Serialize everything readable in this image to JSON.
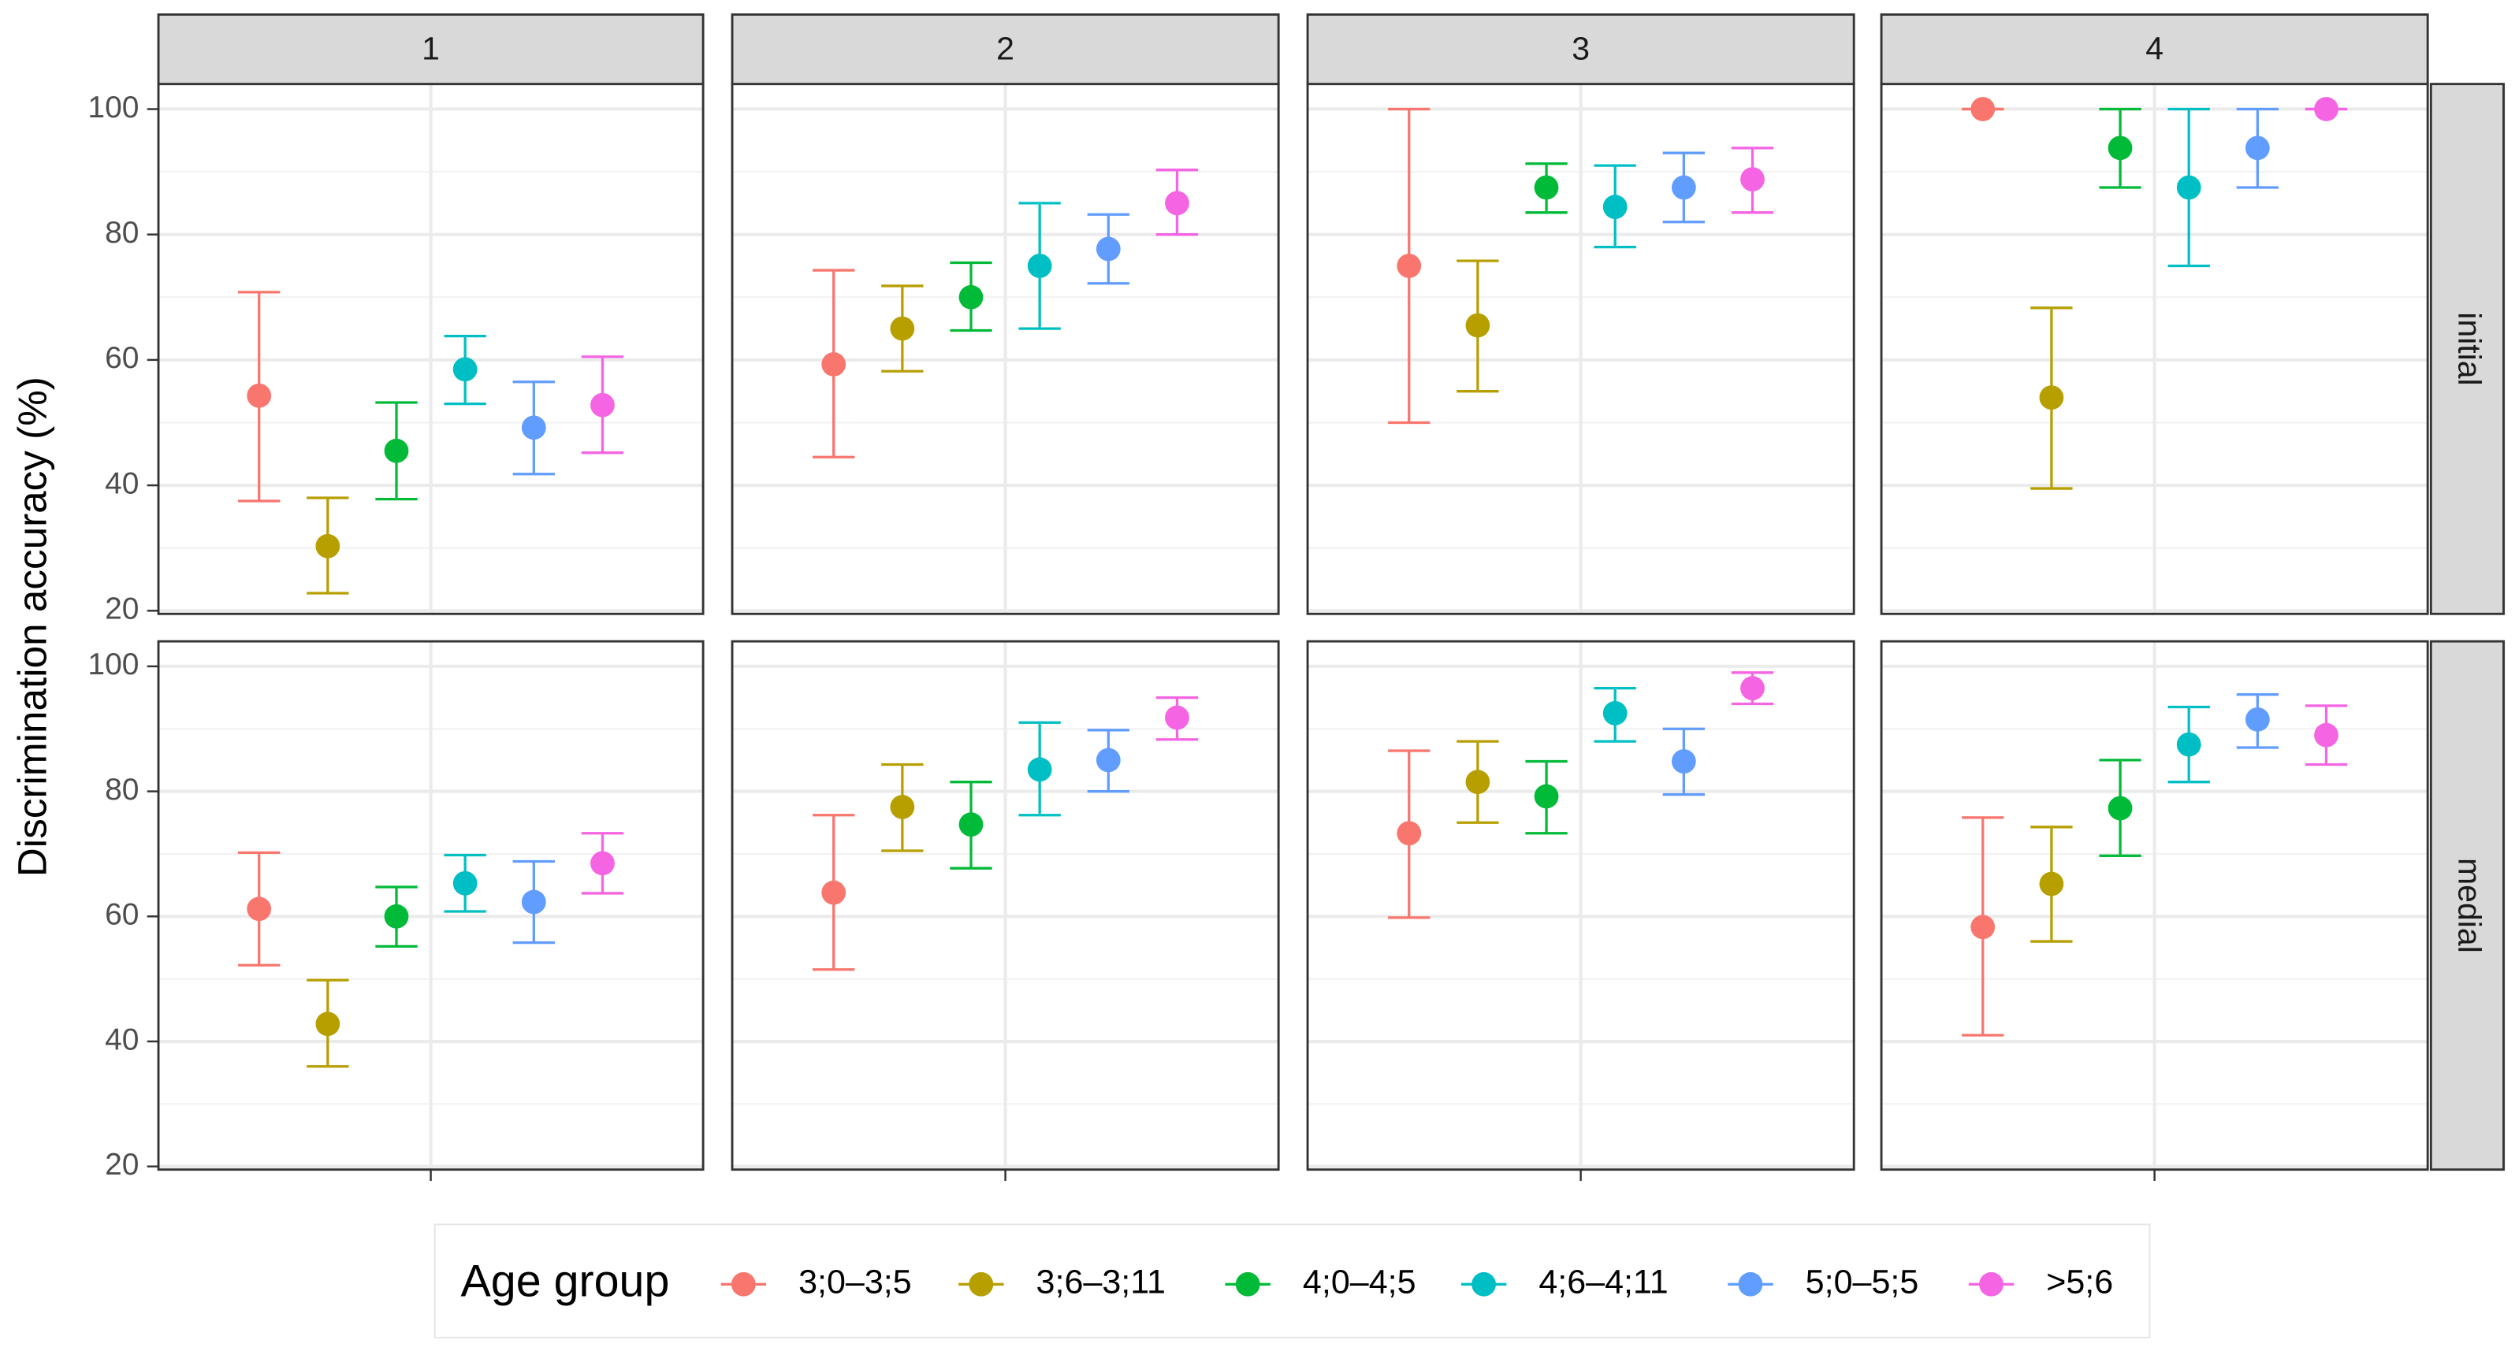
{
  "chart_data": {
    "type": "errorbar",
    "y_label": "Discrimination accuracy (%)",
    "columns": [
      "1",
      "2",
      "3",
      "4"
    ],
    "rows": [
      "initial",
      "medial"
    ],
    "ylim": [
      19.5,
      104
    ],
    "yticks": [
      20,
      40,
      60,
      80,
      100
    ],
    "y_minor_ticks": [
      30,
      50,
      70,
      90
    ],
    "grid": true,
    "legend_title": "Age group",
    "legend_position": "bottom",
    "series": [
      {
        "name": "3;0–3;5",
        "color": "#F8766D",
        "values": [
          [
            54.3,
            59.3,
            75,
            100
          ],
          [
            61.2,
            63.8,
            73.3,
            58.3
          ]
        ],
        "lower": [
          [
            37.5,
            44.5,
            50,
            100
          ],
          [
            52.2,
            51.5,
            59.8,
            41
          ]
        ],
        "upper": [
          [
            70.8,
            74.3,
            100,
            100
          ],
          [
            70.2,
            76.2,
            86.5,
            75.8
          ]
        ]
      },
      {
        "name": "3;6–3;11",
        "color": "#B79F00",
        "values": [
          [
            30.3,
            65,
            65.5,
            54
          ],
          [
            42.8,
            77.5,
            81.5,
            65.2
          ]
        ],
        "lower": [
          [
            22.8,
            58.2,
            55,
            39.5
          ],
          [
            36,
            70.5,
            75,
            56
          ]
        ],
        "upper": [
          [
            38,
            71.8,
            75.8,
            68.3
          ],
          [
            49.8,
            84.3,
            88,
            74.3
          ]
        ]
      },
      {
        "name": "4;0–4;5",
        "color": "#00BA38",
        "values": [
          [
            45.5,
            70,
            87.5,
            93.8
          ],
          [
            60,
            74.7,
            79.2,
            77.3
          ]
        ],
        "lower": [
          [
            37.8,
            64.7,
            83.5,
            87.5
          ],
          [
            55.2,
            67.7,
            73.3,
            69.7
          ]
        ],
        "upper": [
          [
            53.2,
            75.5,
            91.3,
            100
          ],
          [
            64.7,
            81.5,
            84.8,
            85
          ]
        ]
      },
      {
        "name": "4;6–4;11",
        "color": "#00BFC4",
        "values": [
          [
            58.5,
            75,
            84.4,
            87.5
          ],
          [
            65.3,
            83.5,
            92.5,
            87.5
          ]
        ],
        "lower": [
          [
            53,
            65,
            78,
            75
          ],
          [
            60.8,
            76.2,
            88,
            81.5
          ]
        ],
        "upper": [
          [
            63.8,
            85,
            91,
            100
          ],
          [
            69.8,
            91,
            96.5,
            93.5
          ]
        ]
      },
      {
        "name": "5;0–5;5",
        "color": "#619CFF",
        "values": [
          [
            49.2,
            77.7,
            87.5,
            93.8
          ],
          [
            62.3,
            85,
            84.8,
            91.5
          ]
        ],
        "lower": [
          [
            41.8,
            72.2,
            82,
            87.5
          ],
          [
            55.8,
            80,
            79.5,
            87
          ]
        ],
        "upper": [
          [
            56.5,
            83.2,
            93,
            100
          ],
          [
            68.8,
            89.8,
            90,
            95.5
          ]
        ]
      },
      {
        "name": ">5;6",
        "color": "#F564E3",
        "values": [
          [
            52.8,
            85,
            88.8,
            100
          ],
          [
            68.5,
            91.8,
            96.5,
            89
          ]
        ],
        "lower": [
          [
            45.2,
            80,
            83.5,
            100
          ],
          [
            63.7,
            88.3,
            94,
            84.3
          ]
        ],
        "upper": [
          [
            60.5,
            90.3,
            93.8,
            100
          ],
          [
            73.3,
            95,
            99,
            93.7
          ]
        ]
      }
    ]
  }
}
